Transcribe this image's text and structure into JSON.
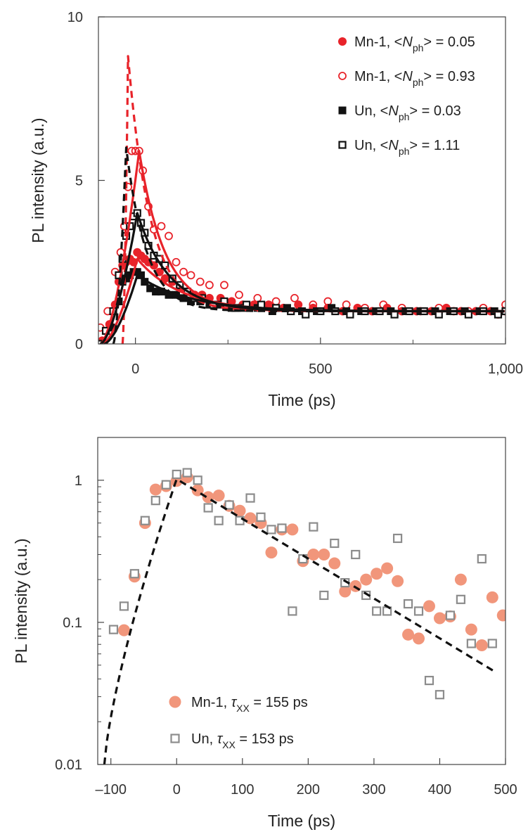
{
  "chart_data": [
    {
      "type": "line",
      "id": "top",
      "title": "",
      "xlabel": "Time (ps)",
      "ylabel": "PL intensity (a.u.)",
      "xlim": [
        -100,
        1000
      ],
      "ylim": [
        0,
        10
      ],
      "yscale": "linear",
      "xticks": [
        0,
        500,
        1000
      ],
      "xtick_labels": [
        "0",
        "500",
        "1,000"
      ],
      "x_minor_ticks": [
        250,
        750
      ],
      "yticks": [
        0,
        5,
        10
      ],
      "ytick_labels": [
        "0",
        "5",
        "10"
      ],
      "legend_position": "top-right",
      "legend": [
        {
          "label_pre": "Mn-1, <",
          "label_sym": "N",
          "label_sub": "ph",
          "label_post": "> = 0.05",
          "marker": "circle-filled",
          "color": "#e8232a"
        },
        {
          "label_pre": "Mn-1, <",
          "label_sym": "N",
          "label_sub": "ph",
          "label_post": "> = 0.93",
          "marker": "circle-open",
          "color": "#e8232a"
        },
        {
          "label_pre": "Un, <",
          "label_sym": "N",
          "label_sub": "ph",
          "label_post": "> = 0.03",
          "marker": "square-filled",
          "color": "#111111"
        },
        {
          "label_pre": "Un, <",
          "label_sym": "N",
          "label_sub": "ph",
          "label_post": "> = 1.11",
          "marker": "square-open",
          "color": "#111111"
        }
      ],
      "series": [
        {
          "name": "Mn-1, <Nph> = 0.05",
          "kind": "scatter",
          "marker": "circle-filled",
          "color": "#e8232a",
          "x": [
            -90,
            -70,
            -55,
            -45,
            -35,
            -25,
            -15,
            -5,
            5,
            15,
            25,
            35,
            50,
            65,
            80,
            100,
            120,
            140,
            160,
            180,
            200,
            230,
            260,
            290,
            320,
            360,
            400,
            440,
            480,
            520,
            560,
            600,
            640,
            680,
            720,
            760,
            800,
            840,
            880,
            920,
            960,
            1000
          ],
          "y": [
            0.1,
            0.6,
            1.2,
            1.9,
            2.4,
            2.5,
            2.6,
            2.5,
            2.8,
            2.7,
            2.6,
            2.5,
            2.4,
            2.2,
            2.0,
            1.9,
            1.7,
            1.6,
            1.5,
            1.5,
            1.4,
            1.4,
            1.3,
            1.2,
            1.2,
            1.2,
            1.1,
            1.2,
            1.1,
            1.1,
            1.0,
            1.1,
            1.0,
            1.1,
            1.0,
            1.0,
            1.0,
            1.1,
            1.0,
            1.0,
            1.0,
            1.0
          ]
        },
        {
          "name": "Mn-1, <Nph> = 0.93",
          "kind": "scatter",
          "marker": "circle-open",
          "color": "#e8232a",
          "x": [
            -95,
            -75,
            -55,
            -40,
            -30,
            -20,
            -10,
            0,
            10,
            20,
            35,
            50,
            70,
            90,
            110,
            130,
            150,
            175,
            200,
            240,
            280,
            330,
            380,
            430,
            480,
            520,
            570,
            620,
            670,
            720,
            770,
            820,
            860,
            900,
            940,
            980,
            1000
          ],
          "y": [
            0.5,
            1.0,
            2.2,
            2.8,
            3.6,
            4.8,
            5.9,
            5.9,
            5.9,
            5.3,
            4.2,
            3.5,
            3.6,
            3.3,
            2.5,
            2.2,
            2.1,
            1.9,
            1.8,
            1.8,
            1.5,
            1.4,
            1.3,
            1.4,
            1.2,
            1.3,
            1.2,
            1.1,
            1.2,
            1.1,
            1.0,
            1.1,
            1.0,
            1.0,
            1.1,
            0.9,
            1.2
          ]
        },
        {
          "name": "Un, <Nph> = 0.03",
          "kind": "scatter",
          "marker": "square-filled",
          "color": "#111111",
          "x": [
            -85,
            -60,
            -45,
            -35,
            -25,
            -15,
            -5,
            5,
            15,
            25,
            40,
            55,
            70,
            90,
            110,
            130,
            150,
            175,
            200,
            230,
            260,
            290,
            330,
            370,
            410,
            450,
            490,
            530,
            570,
            610,
            650,
            690,
            730,
            770,
            810,
            850,
            890,
            930,
            970,
            1000
          ],
          "y": [
            0,
            0.5,
            1.3,
            1.9,
            2.0,
            2.1,
            2.2,
            2.2,
            2.1,
            1.9,
            1.7,
            1.6,
            1.6,
            1.5,
            1.5,
            1.4,
            1.3,
            1.3,
            1.2,
            1.2,
            1.1,
            1.1,
            1.1,
            1.0,
            1.1,
            1.0,
            1.0,
            1.1,
            1.0,
            1.0,
            1.0,
            1.0,
            1.0,
            1.0,
            1.0,
            1.0,
            1.0,
            1.0,
            1.0,
            1.0
          ]
        },
        {
          "name": "Un, <Nph> = 1.11",
          "kind": "scatter",
          "marker": "square-open",
          "color": "#111111",
          "x": [
            -100,
            -80,
            -60,
            -45,
            -35,
            -25,
            -15,
            -5,
            5,
            15,
            25,
            35,
            50,
            65,
            80,
            100,
            120,
            140,
            160,
            180,
            210,
            240,
            270,
            300,
            340,
            380,
            420,
            460,
            500,
            540,
            580,
            620,
            660,
            700,
            740,
            780,
            820,
            860,
            900,
            940,
            980,
            1000
          ],
          "y": [
            0,
            0.4,
            1.0,
            2.1,
            2.6,
            3.3,
            3.6,
            3.9,
            4.0,
            3.7,
            3.4,
            3.0,
            2.7,
            2.6,
            2.4,
            2.0,
            1.8,
            1.6,
            1.4,
            1.4,
            1.2,
            1.3,
            1.1,
            1.2,
            1.2,
            1.1,
            1.0,
            0.9,
            1.0,
            1.0,
            0.9,
            1.0,
            1.0,
            0.9,
            1.0,
            1.0,
            0.9,
            1.0,
            0.9,
            1.0,
            0.9,
            1.0
          ]
        },
        {
          "name": "Mn-1 fit (0.05)",
          "kind": "fit",
          "style": "solid",
          "color": "#e8232a",
          "rise_x0": -90,
          "peak_x": 5,
          "peak_y": 2.6,
          "base_y": 1.0,
          "tau": 120
        },
        {
          "name": "Mn-1 fit (0.93)",
          "kind": "fit",
          "style": "solid",
          "color": "#e8232a",
          "rise_x0": -95,
          "peak_x": 10,
          "peak_y": 5.9,
          "base_y": 1.0,
          "tau": 70
        },
        {
          "name": "Mn-1 fit (0.93) dashed",
          "kind": "fit",
          "style": "dashed",
          "color": "#e8232a",
          "rise_x0": -35,
          "peak_x": -20,
          "peak_y": 8.8,
          "base_y": 1.0,
          "tau": 60
        },
        {
          "name": "Un fit (0.03)",
          "kind": "fit",
          "style": "solid",
          "color": "#111111",
          "rise_x0": -85,
          "peak_x": 5,
          "peak_y": 2.1,
          "base_y": 1.0,
          "tau": 140
        },
        {
          "name": "Un fit (1.11)",
          "kind": "fit",
          "style": "solid",
          "color": "#111111",
          "rise_x0": -95,
          "peak_x": 5,
          "peak_y": 4.0,
          "base_y": 1.0,
          "tau": 85
        },
        {
          "name": "Un fit (1.11) dashed",
          "kind": "fit",
          "style": "dashed",
          "color": "#111111",
          "rise_x0": -60,
          "peak_x": -25,
          "peak_y": 6.0,
          "base_y": 1.0,
          "tau": 55
        }
      ]
    },
    {
      "type": "scatter",
      "id": "bottom",
      "title": "",
      "xlabel": "Time (ps)",
      "ylabel": "PL intensity (a.u.)",
      "xlim": [
        -120,
        500
      ],
      "ylim": [
        0.01,
        2
      ],
      "yscale": "log",
      "xticks": [
        -100,
        0,
        100,
        200,
        300,
        400,
        500
      ],
      "xtick_labels": [
        "–100",
        "0",
        "100",
        "200",
        "300",
        "400",
        "500"
      ],
      "yticks": [
        0.01,
        0.1,
        1
      ],
      "ytick_labels": [
        "0.01",
        "0.1",
        "1"
      ],
      "legend_position": "bottom-left",
      "legend": [
        {
          "label_pre": "Mn-1, ",
          "label_sym": "τ",
          "label_sub": "XX",
          "label_post": " = 155 ps",
          "marker": "circle-filled",
          "color": "#f1967b"
        },
        {
          "label_pre": "Un, ",
          "label_sym": "τ",
          "label_sub": "XX",
          "label_post": " = 153 ps",
          "marker": "square-open",
          "color": "#8c8c8c"
        }
      ],
      "series": [
        {
          "name": "Mn-1, τXX = 155 ps",
          "kind": "scatter",
          "marker": "circle-filled",
          "color": "#f1967b",
          "x": [
            -80,
            -64,
            -48,
            -32,
            -16,
            0,
            16,
            32,
            48,
            64,
            80,
            96,
            112,
            128,
            144,
            160,
            176,
            192,
            208,
            224,
            240,
            256,
            272,
            288,
            304,
            320,
            336,
            352,
            368,
            384,
            400,
            416,
            432,
            448,
            464,
            480,
            496
          ],
          "y": [
            0.088,
            0.21,
            0.5,
            0.86,
            0.91,
            0.99,
            1.05,
            0.85,
            0.76,
            0.78,
            0.66,
            0.61,
            0.54,
            0.5,
            0.31,
            0.45,
            0.45,
            0.27,
            0.3,
            0.3,
            0.26,
            0.165,
            0.18,
            0.2,
            0.22,
            0.24,
            0.195,
            0.082,
            0.077,
            0.13,
            0.107,
            0.11,
            0.2,
            0.089,
            0.069,
            0.15,
            0.112
          ]
        },
        {
          "name": "Un, τXX = 153 ps",
          "kind": "scatter",
          "marker": "square-open",
          "color": "#8c8c8c",
          "x": [
            -96,
            -80,
            -64,
            -48,
            -32,
            -16,
            0,
            16,
            32,
            48,
            64,
            80,
            96,
            112,
            128,
            144,
            160,
            176,
            192,
            208,
            224,
            240,
            256,
            272,
            288,
            304,
            320,
            336,
            352,
            368,
            384,
            400,
            416,
            432,
            448,
            464,
            480
          ],
          "y": [
            0.089,
            0.13,
            0.22,
            0.52,
            0.72,
            0.93,
            1.1,
            1.13,
            1.0,
            0.64,
            0.52,
            0.67,
            0.52,
            0.75,
            0.55,
            0.45,
            0.46,
            0.12,
            0.28,
            0.47,
            0.155,
            0.36,
            0.19,
            0.3,
            0.155,
            0.12,
            0.12,
            0.39,
            0.135,
            0.12,
            0.039,
            0.031,
            0.112,
            0.145,
            0.071,
            0.28,
            0.071
          ]
        },
        {
          "name": "fit",
          "kind": "fit-log",
          "style": "dashed",
          "color": "#111111",
          "rise": {
            "x0": -110,
            "y0": 0.01,
            "x1": 0,
            "y1": 1.02
          },
          "decay": {
            "x0": 0,
            "y0": 1.02,
            "tau": 155,
            "x_end": 485
          }
        }
      ]
    }
  ]
}
